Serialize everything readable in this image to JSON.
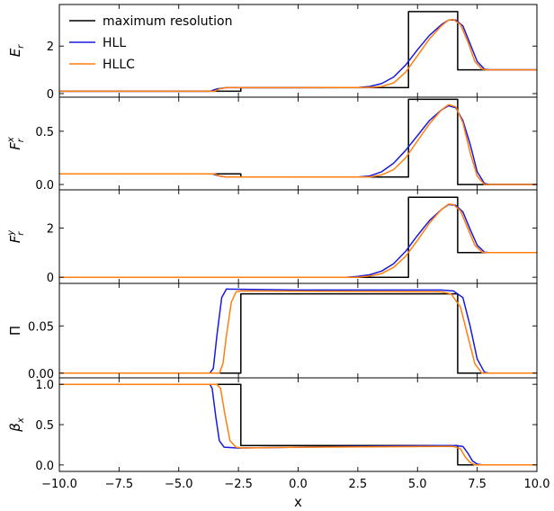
{
  "chart_data": {
    "type": "line",
    "shared_x": {
      "label": "x",
      "lim": [
        -10,
        10
      ],
      "ticks": [
        -10,
        -7.5,
        -5,
        -2.5,
        0,
        2.5,
        5,
        7.5,
        10
      ],
      "tick_labels": [
        "−10.0",
        "−7.5",
        "−5.0",
        "−2.5",
        "0.0",
        "2.5",
        "5.0",
        "7.5",
        "10.0"
      ]
    },
    "legend": {
      "placement": "upper-left of top panel",
      "entries": [
        "maximum resolution",
        "HLL",
        "HLLC"
      ]
    },
    "colors": {
      "maximum resolution": "#000000",
      "HLL": "#1a1adb",
      "HLLC": "#ff7f0e"
    },
    "panels": [
      {
        "ylabel": "E_r",
        "ylim": [
          -0.15,
          3.75
        ],
        "yticks": [
          0,
          2
        ],
        "ytick_labels": [
          "0",
          "2"
        ],
        "series": [
          {
            "name": "maximum resolution",
            "points": [
              [
                -10,
                0.1
              ],
              [
                -2.4,
                0.1
              ],
              [
                -2.4,
                0.25
              ],
              [
                4.62,
                0.25
              ],
              [
                4.62,
                3.45
              ],
              [
                6.68,
                3.45
              ],
              [
                6.68,
                1.0
              ],
              [
                10,
                1.0
              ]
            ]
          },
          {
            "name": "HLL",
            "points": [
              [
                -10,
                0.1
              ],
              [
                -3.7,
                0.1
              ],
              [
                -3.4,
                0.2
              ],
              [
                -3.0,
                0.25
              ],
              [
                0,
                0.25
              ],
              [
                2.5,
                0.26
              ],
              [
                3.0,
                0.3
              ],
              [
                3.5,
                0.42
              ],
              [
                4.0,
                0.7
              ],
              [
                4.5,
                1.2
              ],
              [
                5.0,
                1.85
              ],
              [
                5.5,
                2.45
              ],
              [
                6.0,
                2.9
              ],
              [
                6.3,
                3.1
              ],
              [
                6.6,
                3.1
              ],
              [
                6.9,
                2.85
              ],
              [
                7.2,
                2.1
              ],
              [
                7.5,
                1.35
              ],
              [
                7.8,
                1.03
              ],
              [
                8.0,
                1.0
              ],
              [
                10,
                1.0
              ]
            ]
          },
          {
            "name": "HLLC",
            "points": [
              [
                -10,
                0.1
              ],
              [
                -3.5,
                0.1
              ],
              [
                -3.3,
                0.2
              ],
              [
                -3.0,
                0.25
              ],
              [
                0,
                0.25
              ],
              [
                3.0,
                0.26
              ],
              [
                3.5,
                0.3
              ],
              [
                4.0,
                0.45
              ],
              [
                4.5,
                0.9
              ],
              [
                5.0,
                1.6
              ],
              [
                5.5,
                2.3
              ],
              [
                6.0,
                2.85
              ],
              [
                6.3,
                3.1
              ],
              [
                6.5,
                3.12
              ],
              [
                6.8,
                2.9
              ],
              [
                7.1,
                2.2
              ],
              [
                7.4,
                1.35
              ],
              [
                7.7,
                1.03
              ],
              [
                7.9,
                1.0
              ],
              [
                10,
                1.0
              ]
            ]
          }
        ]
      },
      {
        "ylabel": "F_r^x",
        "ylim": [
          -0.05,
          0.82
        ],
        "yticks": [
          0,
          0.5
        ],
        "ytick_labels": [
          "0.0",
          "0.5"
        ],
        "series": [
          {
            "name": "maximum resolution",
            "points": [
              [
                -10,
                0.1
              ],
              [
                -2.4,
                0.1
              ],
              [
                -2.4,
                0.07
              ],
              [
                4.62,
                0.07
              ],
              [
                4.62,
                0.8
              ],
              [
                6.68,
                0.8
              ],
              [
                6.68,
                0.0
              ],
              [
                10,
                0.0
              ]
            ]
          },
          {
            "name": "HLL",
            "points": [
              [
                -10,
                0.1
              ],
              [
                -3.6,
                0.1
              ],
              [
                -3.3,
                0.08
              ],
              [
                -3.0,
                0.07
              ],
              [
                2.5,
                0.07
              ],
              [
                3.0,
                0.08
              ],
              [
                3.5,
                0.12
              ],
              [
                4.0,
                0.2
              ],
              [
                4.5,
                0.32
              ],
              [
                5.0,
                0.46
              ],
              [
                5.5,
                0.6
              ],
              [
                6.0,
                0.7
              ],
              [
                6.3,
                0.74
              ],
              [
                6.6,
                0.72
              ],
              [
                6.9,
                0.6
              ],
              [
                7.2,
                0.38
              ],
              [
                7.5,
                0.12
              ],
              [
                7.8,
                0.01
              ],
              [
                8.0,
                0.0
              ],
              [
                10,
                0.0
              ]
            ]
          },
          {
            "name": "HLLC",
            "points": [
              [
                -10,
                0.1
              ],
              [
                -3.5,
                0.1
              ],
              [
                -3.3,
                0.08
              ],
              [
                -3.0,
                0.07
              ],
              [
                3.0,
                0.07
              ],
              [
                3.5,
                0.09
              ],
              [
                4.0,
                0.14
              ],
              [
                4.5,
                0.25
              ],
              [
                5.0,
                0.41
              ],
              [
                5.5,
                0.57
              ],
              [
                6.0,
                0.7
              ],
              [
                6.3,
                0.75
              ],
              [
                6.6,
                0.73
              ],
              [
                6.9,
                0.58
              ],
              [
                7.2,
                0.3
              ],
              [
                7.5,
                0.08
              ],
              [
                7.8,
                0.0
              ],
              [
                10,
                0.0
              ]
            ]
          }
        ]
      },
      {
        "ylabel": "F_r^y",
        "ylim": [
          -0.25,
          3.55
        ],
        "yticks": [
          0,
          2
        ],
        "ytick_labels": [
          "0",
          "2"
        ],
        "series": [
          {
            "name": "maximum resolution",
            "points": [
              [
                -10,
                0.0
              ],
              [
                4.62,
                0.0
              ],
              [
                4.62,
                3.25
              ],
              [
                6.68,
                3.25
              ],
              [
                6.68,
                1.0
              ],
              [
                10,
                1.0
              ]
            ]
          },
          {
            "name": "HLL",
            "points": [
              [
                -10,
                0.0
              ],
              [
                2.0,
                0.0
              ],
              [
                2.5,
                0.03
              ],
              [
                3.0,
                0.1
              ],
              [
                3.5,
                0.25
              ],
              [
                4.0,
                0.55
              ],
              [
                4.5,
                1.05
              ],
              [
                5.0,
                1.7
              ],
              [
                5.5,
                2.3
              ],
              [
                6.0,
                2.75
              ],
              [
                6.3,
                2.95
              ],
              [
                6.6,
                2.92
              ],
              [
                6.9,
                2.65
              ],
              [
                7.2,
                1.95
              ],
              [
                7.5,
                1.3
              ],
              [
                7.8,
                1.02
              ],
              [
                8.0,
                1.0
              ],
              [
                10,
                1.0
              ]
            ]
          },
          {
            "name": "HLLC",
            "points": [
              [
                -10,
                0.0
              ],
              [
                2.5,
                0.0
              ],
              [
                3.0,
                0.05
              ],
              [
                3.5,
                0.15
              ],
              [
                4.0,
                0.4
              ],
              [
                4.5,
                0.85
              ],
              [
                5.0,
                1.5
              ],
              [
                5.5,
                2.2
              ],
              [
                6.0,
                2.75
              ],
              [
                6.3,
                2.97
              ],
              [
                6.5,
                2.95
              ],
              [
                6.8,
                2.7
              ],
              [
                7.1,
                2.0
              ],
              [
                7.4,
                1.3
              ],
              [
                7.7,
                1.02
              ],
              [
                7.9,
                1.0
              ],
              [
                10,
                1.0
              ]
            ]
          }
        ]
      },
      {
        "ylabel": "Π",
        "ylim": [
          -0.005,
          0.095
        ],
        "yticks": [
          0,
          0.05
        ],
        "ytick_labels": [
          "0.00",
          "0.05"
        ],
        "series": [
          {
            "name": "maximum resolution",
            "points": [
              [
                -10,
                0.0
              ],
              [
                -2.4,
                0.0
              ],
              [
                -2.4,
                0.084
              ],
              [
                6.68,
                0.084
              ],
              [
                6.68,
                0.0
              ],
              [
                10,
                0.0
              ]
            ]
          },
          {
            "name": "HLL",
            "points": [
              [
                -10,
                0.0
              ],
              [
                -3.7,
                0.0
              ],
              [
                -3.55,
                0.005
              ],
              [
                -3.4,
                0.04
              ],
              [
                -3.2,
                0.08
              ],
              [
                -3.0,
                0.089
              ],
              [
                0,
                0.088
              ],
              [
                6.0,
                0.088
              ],
              [
                6.5,
                0.087
              ],
              [
                6.9,
                0.08
              ],
              [
                7.2,
                0.05
              ],
              [
                7.5,
                0.015
              ],
              [
                7.8,
                0.001
              ],
              [
                8.0,
                0.0
              ],
              [
                10,
                0.0
              ]
            ]
          },
          {
            "name": "HLLC",
            "points": [
              [
                -10,
                0.0
              ],
              [
                -3.3,
                0.0
              ],
              [
                -3.15,
                0.01
              ],
              [
                -3.0,
                0.04
              ],
              [
                -2.8,
                0.075
              ],
              [
                -2.6,
                0.086
              ],
              [
                -2.4,
                0.087
              ],
              [
                6.0,
                0.086
              ],
              [
                6.4,
                0.084
              ],
              [
                6.8,
                0.07
              ],
              [
                7.1,
                0.04
              ],
              [
                7.4,
                0.01
              ],
              [
                7.7,
                0.0
              ],
              [
                10,
                0.0
              ]
            ]
          }
        ]
      },
      {
        "ylabel": "β_x",
        "ylim": [
          -0.08,
          1.08
        ],
        "yticks": [
          0,
          0.5,
          1
        ],
        "ytick_labels": [
          "0.0",
          "0.5",
          "1.0"
        ],
        "series": [
          {
            "name": "maximum resolution",
            "points": [
              [
                -10,
                1.0
              ],
              [
                -2.4,
                1.0
              ],
              [
                -2.4,
                0.24
              ],
              [
                6.68,
                0.24
              ],
              [
                6.68,
                0.0
              ],
              [
                10,
                0.0
              ]
            ]
          },
          {
            "name": "HLL",
            "points": [
              [
                -10,
                1.0
              ],
              [
                -3.7,
                1.0
              ],
              [
                -3.6,
                0.95
              ],
              [
                -3.45,
                0.6
              ],
              [
                -3.3,
                0.3
              ],
              [
                -3.1,
                0.22
              ],
              [
                -2.5,
                0.21
              ],
              [
                0,
                0.22
              ],
              [
                6.0,
                0.24
              ],
              [
                6.6,
                0.24
              ],
              [
                6.9,
                0.23
              ],
              [
                7.1,
                0.15
              ],
              [
                7.3,
                0.05
              ],
              [
                7.5,
                0.01
              ],
              [
                7.7,
                0.0
              ],
              [
                10,
                0.0
              ]
            ]
          },
          {
            "name": "HLLC",
            "points": [
              [
                -10,
                1.0
              ],
              [
                -3.4,
                1.0
              ],
              [
                -3.25,
                0.95
              ],
              [
                -3.05,
                0.6
              ],
              [
                -2.85,
                0.3
              ],
              [
                -2.6,
                0.22
              ],
              [
                -2.3,
                0.21
              ],
              [
                0,
                0.22
              ],
              [
                6.0,
                0.23
              ],
              [
                6.5,
                0.23
              ],
              [
                6.8,
                0.2
              ],
              [
                7.0,
                0.1
              ],
              [
                7.2,
                0.03
              ],
              [
                7.4,
                0.0
              ],
              [
                10,
                0.0
              ]
            ]
          }
        ]
      }
    ]
  }
}
